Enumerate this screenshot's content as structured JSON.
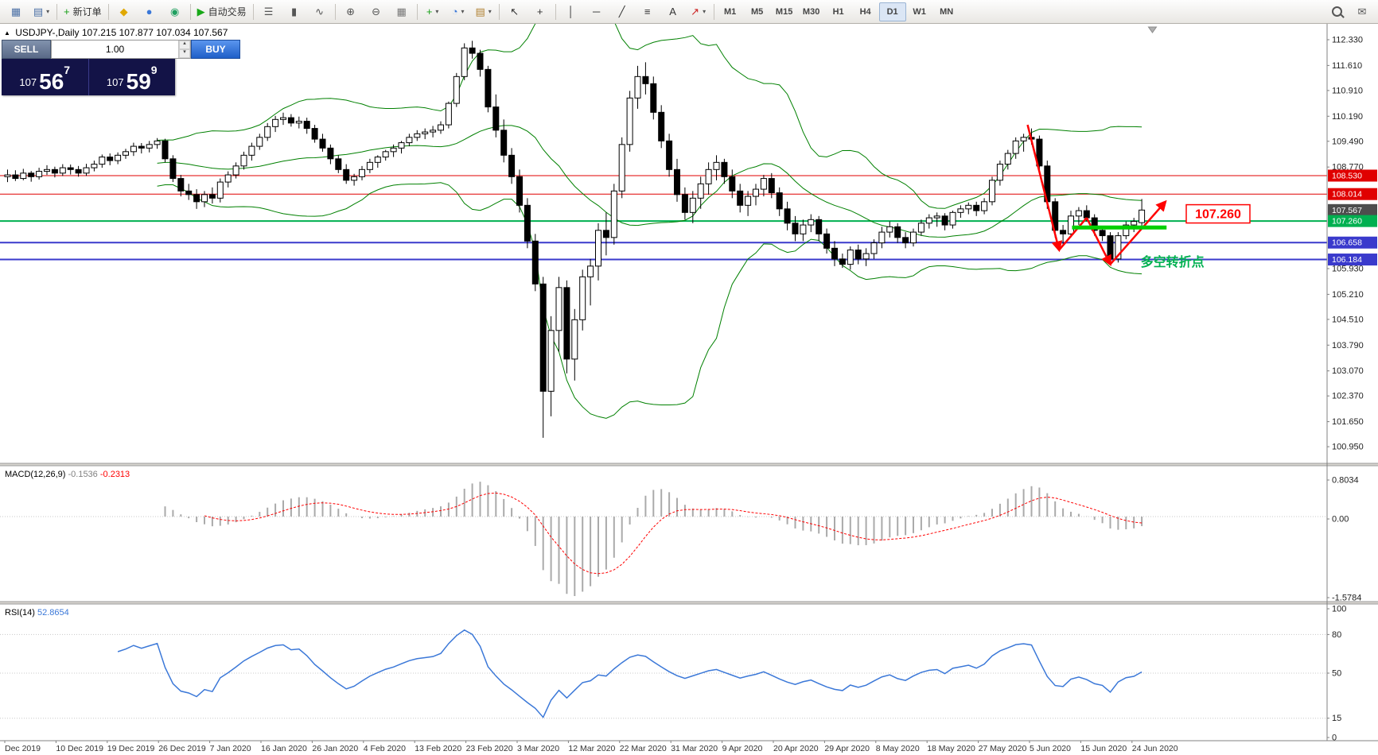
{
  "icons": {
    "caret": "▾",
    "spin_up": "▴",
    "spin_down": "▾",
    "marker": "▲",
    "shift_triangle": "▼"
  },
  "header": {
    "marker": "▲",
    "symbol_period": "USDJPY-,Daily",
    "ohlc": "107.215 107.877 107.034 107.567"
  },
  "trade_panel": {
    "sell_label": "SELL",
    "buy_label": "BUY",
    "lot": "1.00",
    "bid": {
      "prefix": "107",
      "big": "56",
      "sup": "7"
    },
    "ask": {
      "prefix": "107",
      "big": "59",
      "sup": "9"
    }
  },
  "toolbar": {
    "groups": [
      {
        "items": [
          {
            "name": "new-chart",
            "glyph": "▦",
            "color": "#4a6fa5"
          },
          {
            "name": "profiles",
            "glyph": "▤",
            "color": "#4a6fa5",
            "caret": true
          }
        ]
      },
      {
        "items": [
          {
            "name": "new-order",
            "glyph": "+",
            "color": "#18a018",
            "label": "新订单"
          }
        ]
      },
      {
        "items": [
          {
            "name": "market",
            "glyph": "◆",
            "color": "#e0a800"
          },
          {
            "name": "community",
            "glyph": "●",
            "color": "#3b78d8"
          },
          {
            "name": "refresh",
            "glyph": "◉",
            "color": "#20a060"
          }
        ]
      },
      {
        "items": [
          {
            "name": "autotrading",
            "glyph": "▶",
            "color": "#18a818",
            "label": "自动交易"
          }
        ]
      },
      {
        "items": [
          {
            "name": "bars-chart-type",
            "glyph": "☰",
            "color": "#555555"
          },
          {
            "name": "candles-chart-type",
            "glyph": "▮",
            "color": "#555555"
          },
          {
            "name": "line-chart-type",
            "glyph": "∿",
            "color": "#555555"
          }
        ]
      },
      {
        "items": [
          {
            "name": "zoom-in",
            "glyph": "⊕",
            "color": "#555555"
          },
          {
            "name": "zoom-out",
            "glyph": "⊖",
            "color": "#555555"
          },
          {
            "name": "tile-windows",
            "glyph": "▦",
            "color": "#777777"
          }
        ]
      },
      {
        "items": [
          {
            "name": "indicators",
            "glyph": "+",
            "color": "#18a018",
            "caret": true
          },
          {
            "name": "periods",
            "glyph": "◔",
            "color": "#3b78d8",
            "caret": true
          },
          {
            "name": "templates",
            "glyph": "▤",
            "color": "#b08030",
            "caret": true
          }
        ]
      },
      {
        "items": [
          {
            "name": "cursor",
            "glyph": "↖",
            "color": "#333333"
          },
          {
            "name": "crosshair",
            "glyph": "+",
            "color": "#333333"
          }
        ]
      },
      {
        "items": [
          {
            "name": "vertical-line",
            "glyph": "│",
            "color": "#333333"
          },
          {
            "name": "horizontal-line",
            "glyph": "─",
            "color": "#333333"
          },
          {
            "name": "trendline",
            "glyph": "╱",
            "color": "#333333"
          },
          {
            "name": "fibonacci",
            "glyph": "≡",
            "color": "#333333"
          },
          {
            "name": "text-tool",
            "glyph": "A",
            "color": "#333333"
          },
          {
            "name": "arrows-tool",
            "glyph": "↗",
            "color": "#cc2222",
            "caret": true
          }
        ]
      }
    ],
    "timeframes": [
      {
        "label": "M1"
      },
      {
        "label": "M5"
      },
      {
        "label": "M15"
      },
      {
        "label": "M30"
      },
      {
        "label": "H1"
      },
      {
        "label": "H4"
      },
      {
        "label": "D1",
        "active": true
      },
      {
        "label": "W1"
      },
      {
        "label": "MN"
      }
    ],
    "right_items": [
      {
        "name": "search",
        "kind": "mag"
      },
      {
        "name": "messages",
        "glyph": "✉"
      }
    ]
  },
  "chart_data": {
    "type": "candlestick",
    "symbol": "USDJPY-",
    "timeframe": "Daily",
    "ohlc_display": {
      "open": "107.215",
      "high": "107.877",
      "low": "107.034",
      "close": "107.567"
    },
    "candles": [
      [
        108.5,
        108.7,
        108.35,
        108.55
      ],
      [
        108.55,
        108.68,
        108.38,
        108.45
      ],
      [
        108.45,
        108.72,
        108.4,
        108.6
      ],
      [
        108.6,
        108.66,
        108.36,
        108.5
      ],
      [
        108.5,
        108.75,
        108.42,
        108.65
      ],
      [
        108.65,
        108.82,
        108.55,
        108.7
      ],
      [
        108.7,
        108.78,
        108.48,
        108.6
      ],
      [
        108.6,
        108.85,
        108.52,
        108.75
      ],
      [
        108.75,
        108.84,
        108.56,
        108.7
      ],
      [
        108.7,
        108.8,
        108.5,
        108.6
      ],
      [
        108.6,
        108.86,
        108.52,
        108.75
      ],
      [
        108.75,
        108.95,
        108.65,
        108.85
      ],
      [
        108.85,
        109.12,
        108.75,
        109.05
      ],
      [
        109.05,
        109.15,
        108.82,
        108.95
      ],
      [
        108.95,
        109.18,
        108.85,
        109.1
      ],
      [
        109.1,
        109.28,
        109.0,
        109.2
      ],
      [
        109.2,
        109.45,
        109.08,
        109.35
      ],
      [
        109.35,
        109.44,
        109.15,
        109.3
      ],
      [
        109.3,
        109.5,
        109.18,
        109.4
      ],
      [
        109.4,
        109.58,
        109.28,
        109.5
      ],
      [
        109.5,
        109.56,
        108.9,
        109.0
      ],
      [
        109.0,
        109.1,
        108.35,
        108.45
      ],
      [
        108.45,
        108.55,
        107.95,
        108.1
      ],
      [
        108.1,
        108.3,
        107.85,
        108.0
      ],
      [
        108.0,
        108.15,
        107.6,
        107.8
      ],
      [
        107.8,
        108.1,
        107.65,
        108.0
      ],
      [
        108.0,
        108.2,
        107.75,
        107.9
      ],
      [
        107.9,
        108.45,
        107.78,
        108.35
      ],
      [
        108.35,
        108.65,
        108.2,
        108.55
      ],
      [
        108.55,
        108.9,
        108.45,
        108.8
      ],
      [
        108.8,
        109.2,
        108.7,
        109.1
      ],
      [
        109.1,
        109.45,
        108.95,
        109.35
      ],
      [
        109.35,
        109.7,
        109.25,
        109.6
      ],
      [
        109.6,
        110.0,
        109.5,
        109.9
      ],
      [
        109.9,
        110.2,
        109.75,
        110.1
      ],
      [
        110.1,
        110.29,
        109.95,
        110.15
      ],
      [
        110.15,
        110.25,
        109.9,
        110.0
      ],
      [
        110.0,
        110.18,
        109.85,
        110.05
      ],
      [
        110.05,
        110.15,
        109.7,
        109.85
      ],
      [
        109.85,
        109.95,
        109.45,
        109.55
      ],
      [
        109.55,
        109.7,
        109.2,
        109.3
      ],
      [
        109.3,
        109.4,
        108.85,
        109.0
      ],
      [
        109.0,
        109.1,
        108.6,
        108.7
      ],
      [
        108.7,
        108.85,
        108.3,
        108.4
      ],
      [
        108.4,
        108.58,
        108.25,
        108.5
      ],
      [
        108.5,
        108.8,
        108.4,
        108.7
      ],
      [
        108.7,
        109.0,
        108.6,
        108.9
      ],
      [
        108.9,
        109.1,
        108.75,
        109.05
      ],
      [
        109.05,
        109.25,
        108.95,
        109.2
      ],
      [
        109.2,
        109.4,
        109.05,
        109.3
      ],
      [
        109.3,
        109.5,
        109.15,
        109.45
      ],
      [
        109.45,
        109.7,
        109.35,
        109.6
      ],
      [
        109.6,
        109.8,
        109.5,
        109.7
      ],
      [
        109.7,
        109.85,
        109.55,
        109.75
      ],
      [
        109.75,
        109.92,
        109.6,
        109.8
      ],
      [
        109.8,
        110.05,
        109.7,
        109.95
      ],
      [
        109.95,
        110.6,
        109.85,
        110.55
      ],
      [
        110.55,
        111.4,
        110.45,
        111.3
      ],
      [
        111.3,
        112.23,
        111.2,
        112.1
      ],
      [
        112.1,
        112.3,
        111.8,
        111.95
      ],
      [
        111.95,
        112.05,
        111.3,
        111.5
      ],
      [
        111.5,
        111.6,
        110.3,
        110.45
      ],
      [
        110.45,
        110.8,
        109.6,
        109.8
      ],
      [
        109.8,
        110.1,
        108.9,
        109.1
      ],
      [
        109.1,
        109.3,
        108.3,
        108.5
      ],
      [
        108.5,
        108.7,
        107.5,
        107.7
      ],
      [
        107.7,
        107.9,
        106.5,
        106.7
      ],
      [
        106.7,
        106.9,
        105.3,
        105.5
      ],
      [
        105.5,
        105.7,
        101.2,
        102.5
      ],
      [
        102.5,
        104.6,
        101.8,
        104.2
      ],
      [
        104.2,
        105.7,
        103.6,
        105.4
      ],
      [
        105.4,
        105.6,
        103.0,
        103.4
      ],
      [
        103.4,
        104.8,
        102.8,
        104.5
      ],
      [
        104.5,
        105.9,
        104.2,
        105.7
      ],
      [
        105.7,
        106.2,
        104.9,
        106.0
      ],
      [
        106.0,
        107.2,
        105.6,
        107.0
      ],
      [
        107.0,
        107.5,
        106.3,
        106.8
      ],
      [
        106.8,
        108.3,
        106.6,
        108.1
      ],
      [
        108.1,
        109.6,
        107.9,
        109.4
      ],
      [
        109.4,
        110.9,
        109.2,
        110.7
      ],
      [
        110.7,
        111.6,
        110.4,
        111.3
      ],
      [
        111.3,
        111.7,
        110.8,
        111.1
      ],
      [
        111.1,
        111.3,
        110.1,
        110.3
      ],
      [
        110.3,
        110.5,
        109.3,
        109.5
      ],
      [
        109.5,
        109.7,
        108.5,
        108.7
      ],
      [
        108.7,
        109.0,
        107.8,
        108.0
      ],
      [
        108.0,
        108.2,
        107.3,
        107.5
      ],
      [
        107.5,
        108.1,
        107.2,
        107.9
      ],
      [
        107.9,
        108.5,
        107.6,
        108.3
      ],
      [
        108.3,
        108.9,
        108.0,
        108.7
      ],
      [
        108.7,
        109.1,
        108.4,
        108.9
      ],
      [
        108.9,
        109.0,
        108.3,
        108.5
      ],
      [
        108.5,
        108.7,
        107.9,
        108.1
      ],
      [
        108.1,
        108.3,
        107.5,
        107.7
      ],
      [
        107.7,
        108.1,
        107.4,
        107.95
      ],
      [
        107.95,
        108.3,
        107.7,
        108.15
      ],
      [
        108.15,
        108.55,
        107.95,
        108.45
      ],
      [
        108.45,
        108.6,
        107.9,
        108.05
      ],
      [
        108.05,
        108.2,
        107.4,
        107.6
      ],
      [
        107.6,
        107.8,
        107.0,
        107.2
      ],
      [
        107.2,
        107.4,
        106.7,
        106.9
      ],
      [
        106.9,
        107.3,
        106.7,
        107.15
      ],
      [
        107.15,
        107.45,
        106.95,
        107.3
      ],
      [
        107.3,
        107.4,
        106.7,
        106.9
      ],
      [
        106.9,
        107.05,
        106.35,
        106.5
      ],
      [
        106.5,
        106.7,
        106.0,
        106.2
      ],
      [
        106.2,
        106.35,
        105.95,
        106.05
      ],
      [
        106.05,
        106.55,
        105.9,
        106.45
      ],
      [
        106.45,
        106.6,
        106.05,
        106.2
      ],
      [
        106.2,
        106.5,
        106.0,
        106.35
      ],
      [
        106.35,
        106.75,
        106.2,
        106.65
      ],
      [
        106.65,
        107.1,
        106.5,
        106.95
      ],
      [
        106.95,
        107.25,
        106.8,
        107.1
      ],
      [
        107.1,
        107.2,
        106.65,
        106.8
      ],
      [
        106.8,
        106.95,
        106.5,
        106.65
      ],
      [
        106.65,
        107.05,
        106.55,
        106.95
      ],
      [
        106.95,
        107.3,
        106.85,
        107.2
      ],
      [
        107.2,
        107.45,
        107.05,
        107.35
      ],
      [
        107.35,
        107.5,
        107.1,
        107.4
      ],
      [
        107.4,
        107.48,
        107.0,
        107.15
      ],
      [
        107.15,
        107.55,
        107.05,
        107.5
      ],
      [
        107.5,
        107.7,
        107.35,
        107.6
      ],
      [
        107.6,
        107.78,
        107.45,
        107.7
      ],
      [
        107.7,
        107.8,
        107.4,
        107.55
      ],
      [
        107.55,
        107.9,
        107.45,
        107.8
      ],
      [
        107.8,
        108.5,
        107.7,
        108.4
      ],
      [
        108.4,
        108.95,
        108.25,
        108.85
      ],
      [
        108.85,
        109.25,
        108.7,
        109.15
      ],
      [
        109.15,
        109.6,
        109.0,
        109.5
      ],
      [
        109.5,
        109.7,
        109.2,
        109.6
      ],
      [
        109.6,
        109.85,
        109.4,
        109.55
      ],
      [
        109.55,
        109.65,
        108.6,
        108.8
      ],
      [
        108.8,
        108.95,
        107.6,
        107.8
      ],
      [
        107.8,
        107.9,
        106.8,
        107.0
      ],
      [
        107.0,
        107.15,
        106.58,
        106.9
      ],
      [
        106.9,
        107.55,
        106.8,
        107.4
      ],
      [
        107.4,
        107.65,
        107.15,
        107.55
      ],
      [
        107.55,
        107.7,
        107.25,
        107.35
      ],
      [
        107.35,
        107.45,
        106.85,
        107.0
      ],
      [
        107.0,
        107.1,
        106.7,
        106.85
      ],
      [
        106.85,
        106.95,
        106.06,
        106.2
      ],
      [
        106.2,
        106.95,
        106.1,
        106.85
      ],
      [
        106.85,
        107.25,
        106.75,
        107.15
      ],
      [
        107.15,
        107.35,
        106.95,
        107.25
      ],
      [
        107.215,
        107.877,
        107.034,
        107.567
      ]
    ],
    "bollinger": {
      "period": 20,
      "deviation": 2,
      "color": "#008000"
    },
    "hlines": [
      {
        "price": 108.53,
        "color": "#e00000",
        "width": 1
      },
      {
        "price": 108.014,
        "color": "#e00000",
        "width": 1
      },
      {
        "price": 107.26,
        "color": "#00b050",
        "width": 2
      },
      {
        "price": 106.658,
        "color": "#3a3acc",
        "width": 2
      },
      {
        "price": 106.184,
        "color": "#3a3acc",
        "width": 2
      }
    ],
    "price_scale_labels": [
      "112.330",
      "111.610",
      "110.910",
      "110.190",
      "109.490",
      "108.770",
      "105.930",
      "105.210",
      "104.510",
      "103.790",
      "103.070",
      "102.370",
      "101.650",
      "100.950"
    ],
    "price_tags": [
      {
        "value": "108.530",
        "bg": "#e00000",
        "fg": "#ffffff"
      },
      {
        "value": "108.014",
        "bg": "#e00000",
        "fg": "#ffffff"
      },
      {
        "value": "107.567",
        "bg": "#4d4d4d",
        "fg": "#ffffff"
      },
      {
        "value": "107.260",
        "bg": "#00b050",
        "fg": "#ffffff"
      },
      {
        "value": "106.658",
        "bg": "#3a3acc",
        "fg": "#ffffff"
      },
      {
        "value": "106.184",
        "bg": "#3a3acc",
        "fg": "#ffffff"
      }
    ],
    "macd": {
      "label": "MACD(12,26,9)",
      "values": [
        "-0.1536",
        "-0.2313"
      ],
      "scale": [
        "0.8034",
        "0.00",
        "-1.5784"
      ],
      "hist_color": "#aaaaaa",
      "signal_color": "#ff0000"
    },
    "rsi": {
      "label": "RSI(14)",
      "value": "52.8654",
      "levels": [
        80,
        50,
        15
      ],
      "scale": [
        "100",
        "80",
        "50",
        "15",
        "0"
      ],
      "line_color": "#3b78d8"
    },
    "dates": [
      "Dec 2019",
      "10 Dec 2019",
      "19 Dec 2019",
      "26 Dec 2019",
      "7 Jan 2020",
      "16 Jan 2020",
      "26 Jan 2020",
      "4 Feb 2020",
      "13 Feb 2020",
      "23 Feb 2020",
      "3 Mar 2020",
      "12 Mar 2020",
      "22 Mar 2020",
      "31 Mar 2020",
      "9 Apr 2020",
      "20 Apr 2020",
      "29 Apr 2020",
      "8 May 2020",
      "18 May 2020",
      "27 May 2020",
      "5 Jun 2020",
      "15 Jun 2020",
      "24 Jun 2020"
    ],
    "annotations": {
      "zigzag_color": "#ff0000",
      "zigzag_points": [
        [
          129.5,
          109.95
        ],
        [
          133.5,
          106.45
        ],
        [
          137,
          107.35
        ],
        [
          140,
          106.05
        ],
        [
          147,
          107.8
        ]
      ],
      "support_segment": {
        "from_idx": 135.5,
        "to_idx": 147.5,
        "price": 107.08,
        "color": "#00d000",
        "width": 5
      },
      "price_label": {
        "text": "107.260",
        "color": "#ff0000",
        "x_idx": 150,
        "price": 107.45
      },
      "note_text": {
        "text": "多空转折点",
        "color": "#00b050",
        "x_idx": 144.2,
        "price": 106.0
      }
    }
  }
}
